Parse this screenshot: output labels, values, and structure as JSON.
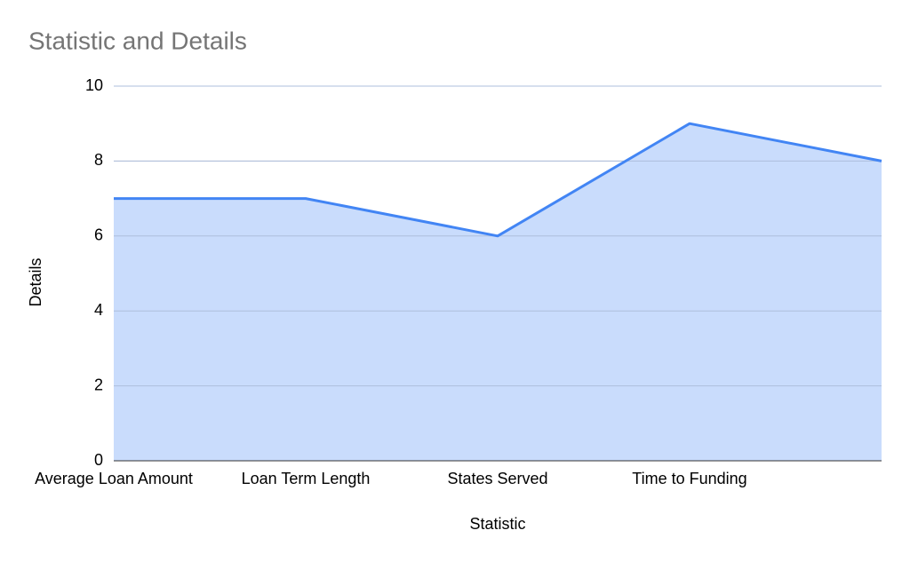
{
  "chart_data": {
    "type": "area",
    "title": "Statistic and Details",
    "x_label": "Statistic",
    "y_label": "Details",
    "categories": [
      "Average Loan Amount",
      "Loan Term Length",
      "States Served",
      "Time to Funding",
      null
    ],
    "values": [
      7,
      7,
      6,
      9,
      8
    ],
    "color": "#4285f4",
    "fill_color": "#c6dafc",
    "ylim": [
      0,
      10
    ],
    "yticks": [
      0,
      2,
      4,
      6,
      8,
      10
    ],
    "grid": true
  }
}
